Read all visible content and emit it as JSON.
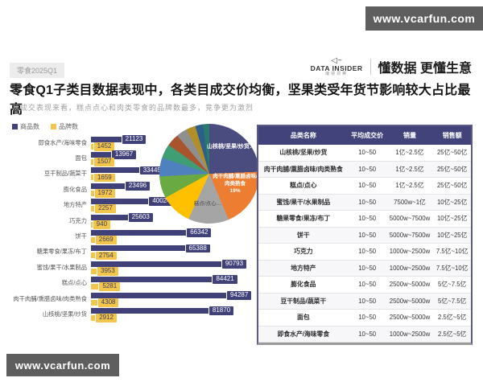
{
  "watermark_text": "www.vcarfun.com",
  "header": {
    "tag": "零食2025Q1",
    "logo_icon": "◁~",
    "logo_name": "DATA INSIDER",
    "logo_sub": "魔镜洞察",
    "slogan": "懂数据 更懂生意"
  },
  "title": "零食Q1子类目数据表现中，各类目成交价均衡，坚果类受年货节影响较大占比最高",
  "subtitle": "从成交表现来看，糕点点心和肉类零食的品牌数最多，竞争更为激烈",
  "colors": {
    "navy": "#3f4178",
    "yellow": "#f3c54b",
    "table_header": "#42437a",
    "watermark_bg": "#5e5e5e"
  },
  "chart_data": [
    {
      "type": "bar",
      "orientation": "horizontal",
      "legend_position": "top-left",
      "categories": [
        "即食水产/海味零食",
        "面包",
        "豆干制品/蔬菜干",
        "膨化食品",
        "地方特产",
        "巧克力",
        "饼干",
        "糖果零食/果冻/布丁",
        "蜜饯/果干/水果制品",
        "糕点/点心",
        "肉干肉脯/熏腊卤味/肉类熟食",
        "山核桃/坚果/炒货"
      ],
      "series": [
        {
          "name": "商品数",
          "color": "#3f4178",
          "values": [
            21123,
            13967,
            33445,
            23496,
            40024,
            25603,
            66342,
            65388,
            90793,
            84421,
            94287,
            81870
          ]
        },
        {
          "name": "品牌数",
          "color": "#f3c54b",
          "values": [
            1452,
            1507,
            1659,
            1972,
            2257,
            940,
            2669,
            2754,
            3953,
            5281,
            4308,
            2912
          ]
        }
      ],
      "xlim": [
        0,
        95000
      ]
    },
    {
      "type": "pie",
      "start_angle_deg": 0,
      "slices": [
        {
          "label": "山核桃/坚果/炒货",
          "value": 24,
          "color": "#4a4b7e"
        },
        {
          "label": "肉干肉脯/熏腊卤味/肉类熟食",
          "value": 19,
          "color": "#ed7d31"
        },
        {
          "label": "糕点/点心",
          "value": 13,
          "color": "#a5a5a5"
        },
        {
          "label": "蜜饯/果干/水果制品",
          "value": 10,
          "color": "#ffc000"
        },
        {
          "label": "糖果零食/果冻/布丁",
          "value": 7,
          "color": "#6aaa43"
        },
        {
          "label": "饼干",
          "value": 6,
          "color": "#4e81bd"
        },
        {
          "label": "巧克力",
          "value": 4.5,
          "color": "#3f9e74"
        },
        {
          "label": "地方特产",
          "value": 4,
          "color": "#a8542c"
        },
        {
          "label": "膨化食品",
          "value": 3.5,
          "color": "#8f8f8f"
        },
        {
          "label": "豆干制品/蔬菜干",
          "value": 3,
          "color": "#b08f28"
        },
        {
          "label": "面包",
          "value": 2.5,
          "color": "#2e5f8a"
        },
        {
          "label": "即食水产/海味零食",
          "value": 2,
          "color": "#2a7a6e"
        }
      ],
      "visible_labels": {
        "label1": "山核桃/坚果/炒货…",
        "label2": "肉干肉脯/熏腊卤味/肉类熟食",
        "label2_pct": "19%",
        "label3": "糕点/点心…"
      }
    }
  ],
  "table": {
    "headers": [
      "品类名称",
      "平均成交价",
      "销量",
      "销售额"
    ],
    "rows": [
      [
        "山核桃/坚果/炒货",
        "10~50",
        "1亿~2.5亿",
        "25亿~50亿"
      ],
      [
        "肉干肉脯/熏腊卤味/肉类熟食",
        "10~50",
        "1亿~2.5亿",
        "25亿~50亿"
      ],
      [
        "糕点/点心",
        "10~50",
        "1亿~2.5亿",
        "25亿~50亿"
      ],
      [
        "蜜饯/果干/水果制品",
        "10~50",
        "7500w~1亿",
        "10亿~25亿"
      ],
      [
        "糖果零食/果冻/布丁",
        "10~50",
        "5000w~7500w",
        "10亿~25亿"
      ],
      [
        "饼干",
        "10~50",
        "5000w~7500w",
        "10亿~25亿"
      ],
      [
        "巧克力",
        "10~50",
        "1000w~2500w",
        "7.5亿~10亿"
      ],
      [
        "地方特产",
        "10~50",
        "1000w~2500w",
        "7.5亿~10亿"
      ],
      [
        "膨化食品",
        "10~50",
        "2500w~5000w",
        "5亿~7.5亿"
      ],
      [
        "豆干制品/蔬菜干",
        "10~50",
        "2500w~5000w",
        "5亿~7.5亿"
      ],
      [
        "面包",
        "10~50",
        "2500w~5000w",
        "2.5亿~5亿"
      ],
      [
        "即食水产/海味零食",
        "10~50",
        "1000w~2500w",
        "2.5亿~5亿"
      ]
    ]
  }
}
